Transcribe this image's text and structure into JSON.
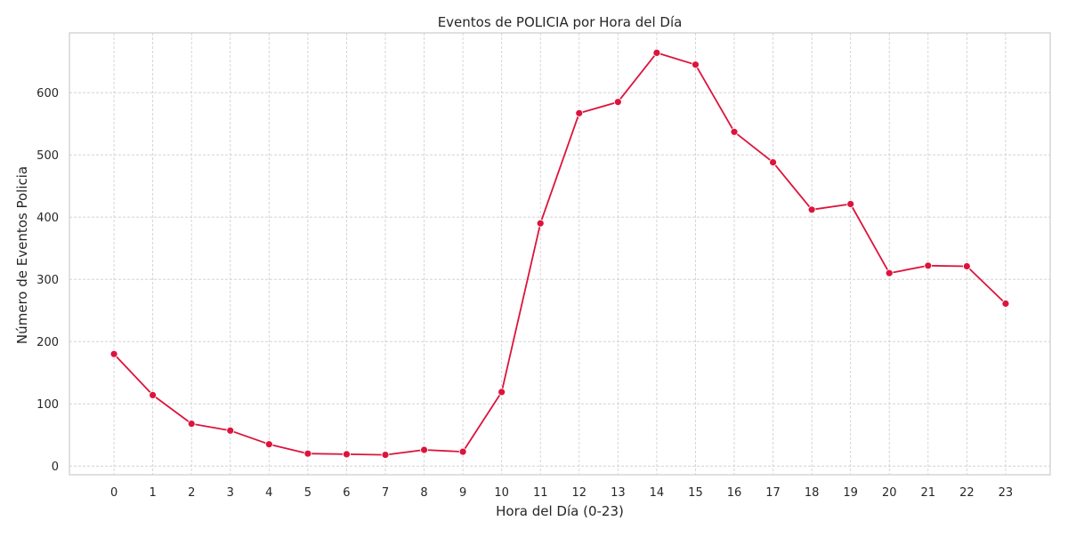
{
  "chart_data": {
    "type": "line",
    "title": "Eventos de POLICIA por Hora del Día",
    "xlabel": "Hora del Día (0-23)",
    "ylabel": "Número de Eventos Policia",
    "x": [
      0,
      1,
      2,
      3,
      4,
      5,
      6,
      7,
      8,
      9,
      10,
      11,
      12,
      13,
      14,
      15,
      16,
      17,
      18,
      19,
      20,
      21,
      22,
      23
    ],
    "series": [
      {
        "name": "",
        "values": [
          180,
          114,
          68,
          57,
          35,
          20,
          19,
          18,
          26,
          23,
          119,
          390,
          567,
          585,
          664,
          645,
          537,
          488,
          412,
          421,
          310,
          322,
          321,
          261
        ],
        "color": "#dc143c"
      }
    ],
    "xticks": [
      "0",
      "1",
      "2",
      "3",
      "4",
      "5",
      "6",
      "7",
      "8",
      "9",
      "10",
      "11",
      "12",
      "13",
      "14",
      "15",
      "16",
      "17",
      "18",
      "19",
      "20",
      "21",
      "22",
      "23"
    ],
    "yticks": [
      0,
      100,
      200,
      300,
      400,
      500,
      600
    ],
    "xlim": [
      -1.15,
      24.15
    ],
    "ylim": [
      -14,
      696
    ],
    "grid": true,
    "grid_color": "#cccccc",
    "frame_color": "#cccccc",
    "marker": "circle"
  }
}
